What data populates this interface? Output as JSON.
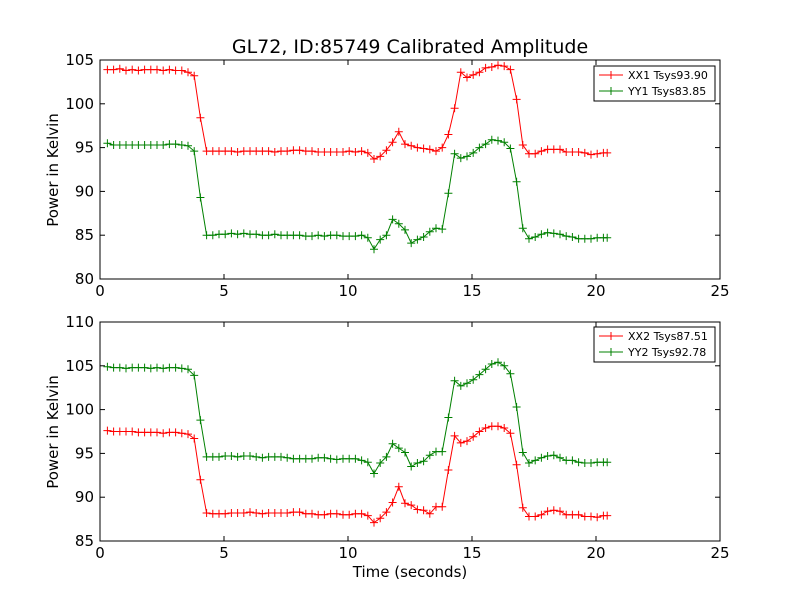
{
  "chart_data": [
    {
      "type": "line",
      "title": "GL72, ID:85749 Calibrated Amplitude",
      "xlabel": "",
      "ylabel": "Power in Kelvin",
      "xlim": [
        0,
        25
      ],
      "ylim": [
        80,
        105
      ],
      "xticks": [
        "0",
        "5",
        "10",
        "15",
        "20",
        "25"
      ],
      "yticks": [
        "80",
        "85",
        "90",
        "95",
        "100",
        "105"
      ],
      "grid": false,
      "legend_position": "top-right",
      "x": [
        0.3,
        0.55,
        0.8,
        1.05,
        1.3,
        1.55,
        1.8,
        2.05,
        2.3,
        2.55,
        2.8,
        3.05,
        3.3,
        3.55,
        3.8,
        4.05,
        4.3,
        4.55,
        4.8,
        5.05,
        5.3,
        5.55,
        5.8,
        6.05,
        6.3,
        6.55,
        6.8,
        7.05,
        7.3,
        7.55,
        7.8,
        8.05,
        8.3,
        8.55,
        8.8,
        9.05,
        9.3,
        9.55,
        9.8,
        10.05,
        10.3,
        10.55,
        10.8,
        11.05,
        11.3,
        11.55,
        11.8,
        12.05,
        12.3,
        12.55,
        12.8,
        13.05,
        13.3,
        13.55,
        13.8,
        14.05,
        14.3,
        14.55,
        14.8,
        15.05,
        15.3,
        15.55,
        15.8,
        16.05,
        16.3,
        16.55,
        16.8,
        17.05,
        17.3,
        17.55,
        17.8,
        18.05,
        18.3,
        18.55,
        18.8,
        19.05,
        19.3,
        19.55,
        19.8,
        20.05,
        20.3,
        20.45
      ],
      "series": [
        {
          "name": "XX1 Tsys93.90",
          "color": "#ff0000",
          "values": [
            103.9,
            103.9,
            104.0,
            103.8,
            103.9,
            103.8,
            103.9,
            103.9,
            103.9,
            103.8,
            103.9,
            103.8,
            103.8,
            103.6,
            103.2,
            98.4,
            94.6,
            94.6,
            94.6,
            94.6,
            94.6,
            94.5,
            94.6,
            94.6,
            94.6,
            94.6,
            94.6,
            94.5,
            94.6,
            94.6,
            94.7,
            94.7,
            94.6,
            94.6,
            94.5,
            94.5,
            94.5,
            94.5,
            94.5,
            94.6,
            94.5,
            94.6,
            94.4,
            93.7,
            94.0,
            94.7,
            95.6,
            96.8,
            95.4,
            95.2,
            95.0,
            94.9,
            94.8,
            94.6,
            95.0,
            96.5,
            99.5,
            103.6,
            103.0,
            103.3,
            103.6,
            104.1,
            104.2,
            104.4,
            104.3,
            103.9,
            100.5,
            95.3,
            94.3,
            94.3,
            94.6,
            94.8,
            94.8,
            94.8,
            94.5,
            94.5,
            94.5,
            94.4,
            94.2,
            94.3,
            94.4,
            94.4
          ]
        },
        {
          "name": "YY1 Tsys83.85",
          "color": "#008000",
          "values": [
            95.5,
            95.3,
            95.3,
            95.3,
            95.3,
            95.3,
            95.3,
            95.3,
            95.3,
            95.3,
            95.4,
            95.4,
            95.3,
            95.2,
            94.6,
            89.3,
            85.0,
            85.0,
            85.1,
            85.1,
            85.2,
            85.1,
            85.2,
            85.1,
            85.1,
            85.0,
            85.0,
            85.1,
            85.0,
            85.0,
            85.0,
            85.0,
            84.9,
            84.9,
            85.0,
            84.9,
            85.0,
            85.0,
            84.9,
            84.9,
            84.9,
            85.0,
            84.7,
            83.4,
            84.5,
            85.0,
            86.8,
            86.3,
            85.6,
            84.1,
            84.5,
            84.8,
            85.4,
            85.8,
            85.7,
            89.8,
            94.3,
            93.8,
            94.0,
            94.4,
            95.0,
            95.4,
            95.9,
            95.8,
            95.6,
            94.9,
            91.1,
            85.8,
            84.6,
            84.8,
            85.1,
            85.3,
            85.2,
            85.1,
            84.9,
            84.8,
            84.6,
            84.6,
            84.6,
            84.7,
            84.7,
            84.7
          ]
        }
      ]
    },
    {
      "type": "line",
      "title": "",
      "xlabel": "Time (seconds)",
      "ylabel": "Power in Kelvin",
      "xlim": [
        0,
        25
      ],
      "ylim": [
        85,
        110
      ],
      "xticks": [
        "0",
        "5",
        "10",
        "15",
        "20",
        "25"
      ],
      "yticks": [
        "85",
        "90",
        "95",
        "100",
        "105",
        "110"
      ],
      "grid": false,
      "legend_position": "top-right",
      "x": [
        0.3,
        0.55,
        0.8,
        1.05,
        1.3,
        1.55,
        1.8,
        2.05,
        2.3,
        2.55,
        2.8,
        3.05,
        3.3,
        3.55,
        3.8,
        4.05,
        4.3,
        4.55,
        4.8,
        5.05,
        5.3,
        5.55,
        5.8,
        6.05,
        6.3,
        6.55,
        6.8,
        7.05,
        7.3,
        7.55,
        7.8,
        8.05,
        8.3,
        8.55,
        8.8,
        9.05,
        9.3,
        9.55,
        9.8,
        10.05,
        10.3,
        10.55,
        10.8,
        11.05,
        11.3,
        11.55,
        11.8,
        12.05,
        12.3,
        12.55,
        12.8,
        13.05,
        13.3,
        13.55,
        13.8,
        14.05,
        14.3,
        14.55,
        14.8,
        15.05,
        15.3,
        15.55,
        15.8,
        16.05,
        16.3,
        16.55,
        16.8,
        17.05,
        17.3,
        17.55,
        17.8,
        18.05,
        18.3,
        18.55,
        18.8,
        19.05,
        19.3,
        19.55,
        19.8,
        20.05,
        20.3,
        20.45
      ],
      "series": [
        {
          "name": "XX2 Tsys87.51",
          "color": "#ff0000",
          "values": [
            97.6,
            97.5,
            97.5,
            97.5,
            97.5,
            97.4,
            97.4,
            97.4,
            97.4,
            97.3,
            97.4,
            97.4,
            97.3,
            97.2,
            96.7,
            92.0,
            88.2,
            88.1,
            88.1,
            88.1,
            88.2,
            88.2,
            88.2,
            88.3,
            88.2,
            88.1,
            88.2,
            88.2,
            88.2,
            88.2,
            88.3,
            88.3,
            88.1,
            88.1,
            88.0,
            88.0,
            88.1,
            88.1,
            88.0,
            88.0,
            88.1,
            88.1,
            87.9,
            87.1,
            87.6,
            88.3,
            89.4,
            91.2,
            89.3,
            89.1,
            88.6,
            88.5,
            88.1,
            88.9,
            88.9,
            93.1,
            97.0,
            96.2,
            96.4,
            96.9,
            97.5,
            97.9,
            98.1,
            98.1,
            97.9,
            97.3,
            93.7,
            88.8,
            87.8,
            87.8,
            88.0,
            88.4,
            88.5,
            88.4,
            88.0,
            88.0,
            88.0,
            87.8,
            87.8,
            87.7,
            87.9,
            87.9
          ]
        },
        {
          "name": "YY2 Tsys92.78",
          "color": "#008000",
          "values": [
            104.9,
            104.8,
            104.8,
            104.7,
            104.8,
            104.8,
            104.8,
            104.7,
            104.8,
            104.7,
            104.8,
            104.8,
            104.7,
            104.6,
            103.9,
            98.8,
            94.6,
            94.6,
            94.6,
            94.7,
            94.7,
            94.6,
            94.7,
            94.7,
            94.6,
            94.5,
            94.6,
            94.6,
            94.6,
            94.5,
            94.4,
            94.4,
            94.4,
            94.4,
            94.5,
            94.5,
            94.4,
            94.3,
            94.4,
            94.4,
            94.4,
            94.2,
            94.0,
            92.7,
            93.9,
            94.6,
            96.1,
            95.6,
            95.1,
            93.5,
            93.9,
            94.1,
            94.8,
            95.2,
            95.2,
            99.1,
            103.3,
            102.7,
            103.0,
            103.4,
            104.0,
            104.6,
            105.2,
            105.4,
            105.0,
            104.1,
            100.3,
            95.1,
            93.9,
            94.2,
            94.5,
            94.7,
            94.8,
            94.5,
            94.2,
            94.2,
            94.0,
            93.9,
            93.9,
            94.0,
            94.0,
            94.0
          ]
        }
      ]
    }
  ]
}
